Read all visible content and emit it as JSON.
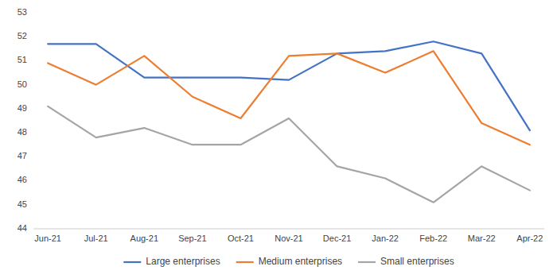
{
  "chart_data": {
    "type": "line",
    "categories": [
      "Jun-21",
      "Jul-21",
      "Aug-21",
      "Sep-21",
      "Oct-21",
      "Nov-21",
      "Dec-21",
      "Jan-22",
      "Feb-22",
      "Mar-22",
      "Apr-22"
    ],
    "series": [
      {
        "name": "Large enterprises",
        "color": "#4472C4",
        "values": [
          51.7,
          51.7,
          50.3,
          50.3,
          50.3,
          50.2,
          51.3,
          51.4,
          51.8,
          51.3,
          48.1
        ]
      },
      {
        "name": "Medium enterprises",
        "color": "#ED7D31",
        "values": [
          50.9,
          50.0,
          51.2,
          49.5,
          48.6,
          51.2,
          51.3,
          50.5,
          51.4,
          48.4,
          47.5
        ]
      },
      {
        "name": "Small enterprises",
        "color": "#A5A5A5",
        "values": [
          49.1,
          47.8,
          48.2,
          47.5,
          47.5,
          48.6,
          46.6,
          46.1,
          45.1,
          46.6,
          45.6
        ]
      }
    ],
    "ylim": [
      44,
      53
    ],
    "yticks": [
      44,
      45,
      46,
      47,
      48,
      49,
      50,
      51,
      52,
      53
    ],
    "grid": false,
    "legend": "bottom"
  }
}
